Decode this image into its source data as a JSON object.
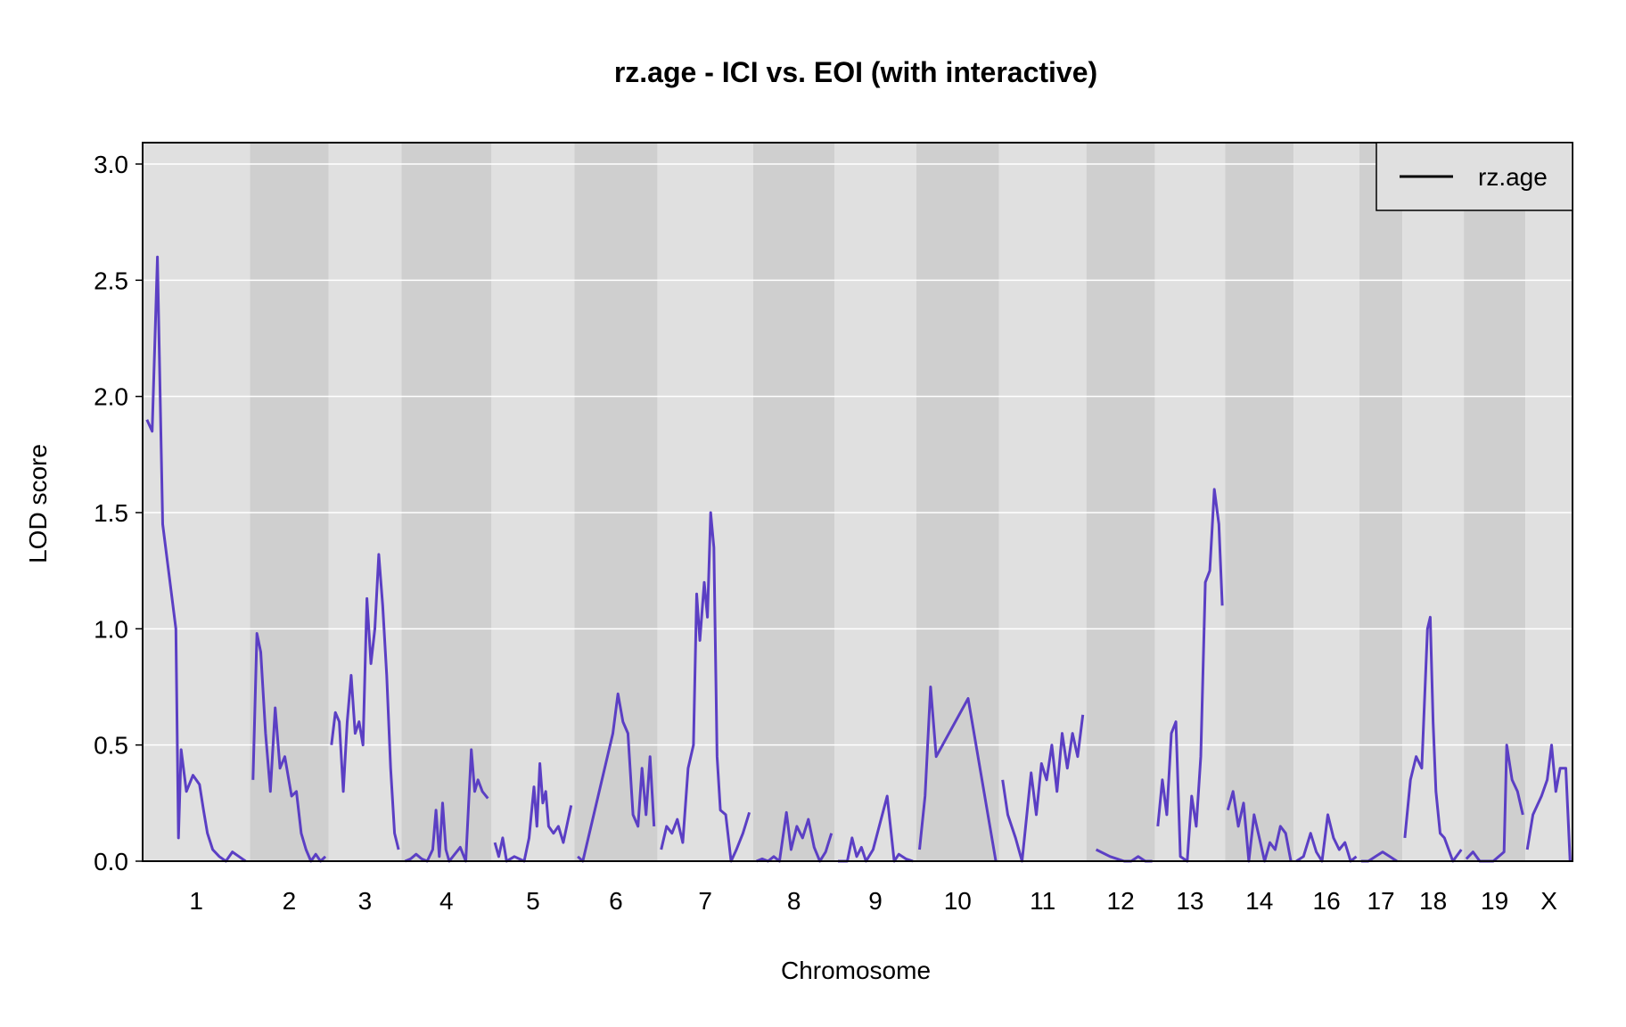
{
  "chart_data": {
    "type": "line",
    "title": "rz.age - ICI vs. EOI (with interactive)",
    "xlabel": "Chromosome",
    "ylabel": "LOD score",
    "ylim": [
      0,
      3.0
    ],
    "yticks": [
      "0.0",
      "0.5",
      "1.0",
      "1.5",
      "2.0",
      "2.5",
      "3.0"
    ],
    "grid": true,
    "legend": {
      "position": "top-right",
      "entries": [
        "rz.age"
      ]
    },
    "colors": {
      "line": "#5b3fc4",
      "band_light": "#e0e0e0",
      "band_dark": "#cfcfcf",
      "grid": "#ffffff",
      "frame": "#000000"
    },
    "chromosomes": [
      {
        "label": "1",
        "range": [
          0.0,
          0.075
        ],
        "lod": [
          [
            0.0,
            1.9
          ],
          [
            0.004,
            1.85
          ],
          [
            0.008,
            2.6
          ],
          [
            0.012,
            1.45
          ],
          [
            0.022,
            1.0
          ],
          [
            0.024,
            0.1
          ],
          [
            0.026,
            0.48
          ],
          [
            0.03,
            0.3
          ],
          [
            0.035,
            0.37
          ],
          [
            0.04,
            0.33
          ],
          [
            0.043,
            0.22
          ],
          [
            0.046,
            0.12
          ],
          [
            0.05,
            0.05
          ],
          [
            0.055,
            0.02
          ],
          [
            0.06,
            0.0
          ],
          [
            0.065,
            0.04
          ],
          [
            0.07,
            0.02
          ],
          [
            0.075,
            0.0
          ]
        ]
      },
      {
        "label": "2",
        "range": [
          0.075,
          0.13
        ],
        "lod": [
          [
            0.0,
            0.35
          ],
          [
            0.004,
            0.98
          ],
          [
            0.008,
            0.9
          ],
          [
            0.013,
            0.55
          ],
          [
            0.018,
            0.3
          ],
          [
            0.023,
            0.66
          ],
          [
            0.028,
            0.4
          ],
          [
            0.033,
            0.45
          ],
          [
            0.04,
            0.28
          ],
          [
            0.045,
            0.3
          ],
          [
            0.05,
            0.12
          ],
          [
            0.055,
            0.05
          ],
          [
            0.06,
            0.0
          ],
          [
            0.065,
            0.03
          ],
          [
            0.07,
            0.0
          ],
          [
            0.075,
            0.02
          ]
        ]
      },
      {
        "label": "3",
        "range": [
          0.13,
          0.181
        ],
        "lod": [
          [
            0.0,
            0.5
          ],
          [
            0.004,
            0.64
          ],
          [
            0.008,
            0.6
          ],
          [
            0.012,
            0.3
          ],
          [
            0.016,
            0.6
          ],
          [
            0.02,
            0.8
          ],
          [
            0.024,
            0.55
          ],
          [
            0.028,
            0.6
          ],
          [
            0.032,
            0.5
          ],
          [
            0.036,
            1.13
          ],
          [
            0.04,
            0.85
          ],
          [
            0.044,
            1.0
          ],
          [
            0.048,
            1.32
          ],
          [
            0.052,
            1.1
          ],
          [
            0.056,
            0.8
          ],
          [
            0.06,
            0.4
          ],
          [
            0.064,
            0.12
          ],
          [
            0.068,
            0.05
          ]
        ]
      },
      {
        "label": "4",
        "range": [
          0.181,
          0.244
        ],
        "lod": [
          [
            0.0,
            0.0
          ],
          [
            0.005,
            0.01
          ],
          [
            0.01,
            0.03
          ],
          [
            0.015,
            0.01
          ],
          [
            0.02,
            0.0
          ],
          [
            0.025,
            0.05
          ],
          [
            0.028,
            0.22
          ],
          [
            0.031,
            0.02
          ],
          [
            0.034,
            0.25
          ],
          [
            0.037,
            0.05
          ],
          [
            0.04,
            0.0
          ],
          [
            0.045,
            0.03
          ],
          [
            0.05,
            0.06
          ],
          [
            0.055,
            0.0
          ],
          [
            0.06,
            0.48
          ],
          [
            0.063,
            0.3
          ],
          [
            0.066,
            0.35
          ],
          [
            0.07,
            0.3
          ],
          [
            0.075,
            0.27
          ]
        ]
      },
      {
        "label": "5",
        "range": [
          0.244,
          0.302
        ],
        "lod": [
          [
            0.0,
            0.08
          ],
          [
            0.004,
            0.02
          ],
          [
            0.008,
            0.1
          ],
          [
            0.012,
            0.0
          ],
          [
            0.02,
            0.02
          ],
          [
            0.03,
            0.0
          ],
          [
            0.035,
            0.1
          ],
          [
            0.04,
            0.32
          ],
          [
            0.043,
            0.15
          ],
          [
            0.046,
            0.42
          ],
          [
            0.049,
            0.25
          ],
          [
            0.052,
            0.3
          ],
          [
            0.055,
            0.15
          ],
          [
            0.06,
            0.12
          ],
          [
            0.065,
            0.15
          ],
          [
            0.07,
            0.08
          ],
          [
            0.078,
            0.24
          ]
        ]
      },
      {
        "label": "6",
        "range": [
          0.302,
          0.36
        ],
        "lod": [
          [
            0.0,
            0.02
          ],
          [
            0.005,
            0.0
          ],
          [
            0.035,
            0.55
          ],
          [
            0.04,
            0.72
          ],
          [
            0.045,
            0.6
          ],
          [
            0.05,
            0.55
          ],
          [
            0.055,
            0.2
          ],
          [
            0.06,
            0.15
          ],
          [
            0.064,
            0.4
          ],
          [
            0.068,
            0.2
          ],
          [
            0.072,
            0.45
          ],
          [
            0.076,
            0.15
          ]
        ]
      },
      {
        "label": "7",
        "range": [
          0.36,
          0.427
        ],
        "lod": [
          [
            0.0,
            0.05
          ],
          [
            0.005,
            0.15
          ],
          [
            0.01,
            0.12
          ],
          [
            0.015,
            0.18
          ],
          [
            0.02,
            0.08
          ],
          [
            0.025,
            0.4
          ],
          [
            0.03,
            0.5
          ],
          [
            0.033,
            1.15
          ],
          [
            0.036,
            0.95
          ],
          [
            0.04,
            1.2
          ],
          [
            0.043,
            1.05
          ],
          [
            0.046,
            1.5
          ],
          [
            0.049,
            1.35
          ],
          [
            0.052,
            0.45
          ],
          [
            0.055,
            0.22
          ],
          [
            0.06,
            0.2
          ],
          [
            0.065,
            0.0
          ],
          [
            0.07,
            0.05
          ],
          [
            0.076,
            0.12
          ],
          [
            0.082,
            0.21
          ]
        ]
      },
      {
        "label": "8",
        "range": [
          0.427,
          0.484
        ],
        "lod": [
          [
            0.0,
            0.0
          ],
          [
            0.005,
            0.01
          ],
          [
            0.01,
            0.0
          ],
          [
            0.015,
            0.02
          ],
          [
            0.02,
            0.0
          ],
          [
            0.026,
            0.21
          ],
          [
            0.03,
            0.05
          ],
          [
            0.035,
            0.15
          ],
          [
            0.04,
            0.1
          ],
          [
            0.045,
            0.18
          ],
          [
            0.05,
            0.06
          ],
          [
            0.055,
            0.0
          ],
          [
            0.06,
            0.04
          ],
          [
            0.065,
            0.12
          ]
        ]
      },
      {
        "label": "9",
        "range": [
          0.484,
          0.541
        ],
        "lod": [
          [
            0.0,
            0.0
          ],
          [
            0.008,
            0.0
          ],
          [
            0.012,
            0.1
          ],
          [
            0.016,
            0.02
          ],
          [
            0.02,
            0.06
          ],
          [
            0.024,
            0.0
          ],
          [
            0.03,
            0.05
          ],
          [
            0.042,
            0.28
          ],
          [
            0.048,
            0.0
          ],
          [
            0.052,
            0.03
          ],
          [
            0.058,
            0.01
          ],
          [
            0.064,
            0.0
          ]
        ]
      },
      {
        "label": "10",
        "range": [
          0.541,
          0.599
        ],
        "lod": [
          [
            0.0,
            0.05
          ],
          [
            0.004,
            0.28
          ],
          [
            0.008,
            0.75
          ],
          [
            0.012,
            0.45
          ],
          [
            0.035,
            0.7
          ],
          [
            0.055,
            0.0
          ]
        ]
      },
      {
        "label": "11",
        "range": [
          0.599,
          0.66
        ],
        "lod": [
          [
            0.0,
            0.35
          ],
          [
            0.004,
            0.2
          ],
          [
            0.01,
            0.1
          ],
          [
            0.015,
            0.0
          ],
          [
            0.022,
            0.38
          ],
          [
            0.026,
            0.2
          ],
          [
            0.03,
            0.42
          ],
          [
            0.034,
            0.35
          ],
          [
            0.038,
            0.5
          ],
          [
            0.042,
            0.3
          ],
          [
            0.046,
            0.55
          ],
          [
            0.05,
            0.4
          ],
          [
            0.054,
            0.55
          ],
          [
            0.058,
            0.45
          ],
          [
            0.062,
            0.63
          ]
        ]
      },
      {
        "label": "12",
        "range": [
          0.66,
          0.708
        ],
        "lod": [
          [
            0.005,
            0.05
          ],
          [
            0.015,
            0.02
          ],
          [
            0.025,
            0.0
          ],
          [
            0.03,
            0.0
          ],
          [
            0.035,
            0.02
          ],
          [
            0.04,
            0.0
          ],
          [
            0.045,
            0.0
          ]
        ]
      },
      {
        "label": "13",
        "range": [
          0.708,
          0.757
        ],
        "lod": [
          [
            0.0,
            0.15
          ],
          [
            0.004,
            0.35
          ],
          [
            0.008,
            0.2
          ],
          [
            0.012,
            0.55
          ],
          [
            0.016,
            0.6
          ],
          [
            0.02,
            0.02
          ],
          [
            0.026,
            0.0
          ],
          [
            0.03,
            0.28
          ],
          [
            0.034,
            0.15
          ],
          [
            0.038,
            0.45
          ],
          [
            0.042,
            1.2
          ],
          [
            0.046,
            1.25
          ],
          [
            0.05,
            1.6
          ],
          [
            0.054,
            1.45
          ],
          [
            0.057,
            1.1
          ]
        ]
      },
      {
        "label": "14",
        "range": [
          0.757,
          0.805
        ],
        "lod": [
          [
            0.0,
            0.22
          ],
          [
            0.004,
            0.3
          ],
          [
            0.008,
            0.15
          ],
          [
            0.012,
            0.25
          ],
          [
            0.016,
            0.0
          ],
          [
            0.02,
            0.2
          ],
          [
            0.024,
            0.1
          ],
          [
            0.028,
            0.0
          ],
          [
            0.032,
            0.08
          ],
          [
            0.036,
            0.05
          ],
          [
            0.04,
            0.15
          ],
          [
            0.044,
            0.12
          ],
          [
            0.048,
            0.0
          ]
        ]
      },
      {
        "label": "16",
        "range": [
          0.805,
          0.851
        ],
        "lod": [
          [
            0.0,
            0.0
          ],
          [
            0.005,
            0.02
          ],
          [
            0.01,
            0.12
          ],
          [
            0.014,
            0.04
          ],
          [
            0.018,
            0.0
          ],
          [
            0.022,
            0.2
          ],
          [
            0.026,
            0.1
          ],
          [
            0.03,
            0.05
          ],
          [
            0.034,
            0.08
          ],
          [
            0.038,
            0.0
          ],
          [
            0.042,
            0.02
          ]
        ]
      },
      {
        "label": "17",
        "range": [
          0.851,
          0.881
        ],
        "lod": [
          [
            0.0,
            0.0
          ],
          [
            0.005,
            0.0
          ],
          [
            0.01,
            0.02
          ],
          [
            0.015,
            0.04
          ],
          [
            0.02,
            0.02
          ],
          [
            0.025,
            0.0
          ]
        ]
      },
      {
        "label": "18",
        "range": [
          0.881,
          0.924
        ],
        "lod": [
          [
            0.0,
            0.1
          ],
          [
            0.004,
            0.35
          ],
          [
            0.008,
            0.45
          ],
          [
            0.012,
            0.4
          ],
          [
            0.016,
            1.0
          ],
          [
            0.018,
            1.05
          ],
          [
            0.02,
            0.6
          ],
          [
            0.022,
            0.3
          ],
          [
            0.025,
            0.12
          ],
          [
            0.028,
            0.1
          ],
          [
            0.034,
            0.0
          ],
          [
            0.04,
            0.05
          ]
        ]
      },
      {
        "label": "19",
        "range": [
          0.924,
          0.967
        ],
        "lod": [
          [
            0.0,
            0.01
          ],
          [
            0.005,
            0.04
          ],
          [
            0.01,
            0.0
          ],
          [
            0.02,
            0.0
          ],
          [
            0.028,
            0.04
          ],
          [
            0.03,
            0.5
          ],
          [
            0.034,
            0.35
          ],
          [
            0.038,
            0.3
          ],
          [
            0.042,
            0.2
          ]
        ]
      },
      {
        "label": "X",
        "range": [
          0.967,
          1.0
        ],
        "lod": [
          [
            0.0,
            0.05
          ],
          [
            0.004,
            0.2
          ],
          [
            0.01,
            0.28
          ],
          [
            0.014,
            0.35
          ],
          [
            0.017,
            0.5
          ],
          [
            0.02,
            0.3
          ],
          [
            0.023,
            0.4
          ],
          [
            0.027,
            0.4
          ],
          [
            0.03,
            0.0
          ]
        ]
      }
    ]
  }
}
